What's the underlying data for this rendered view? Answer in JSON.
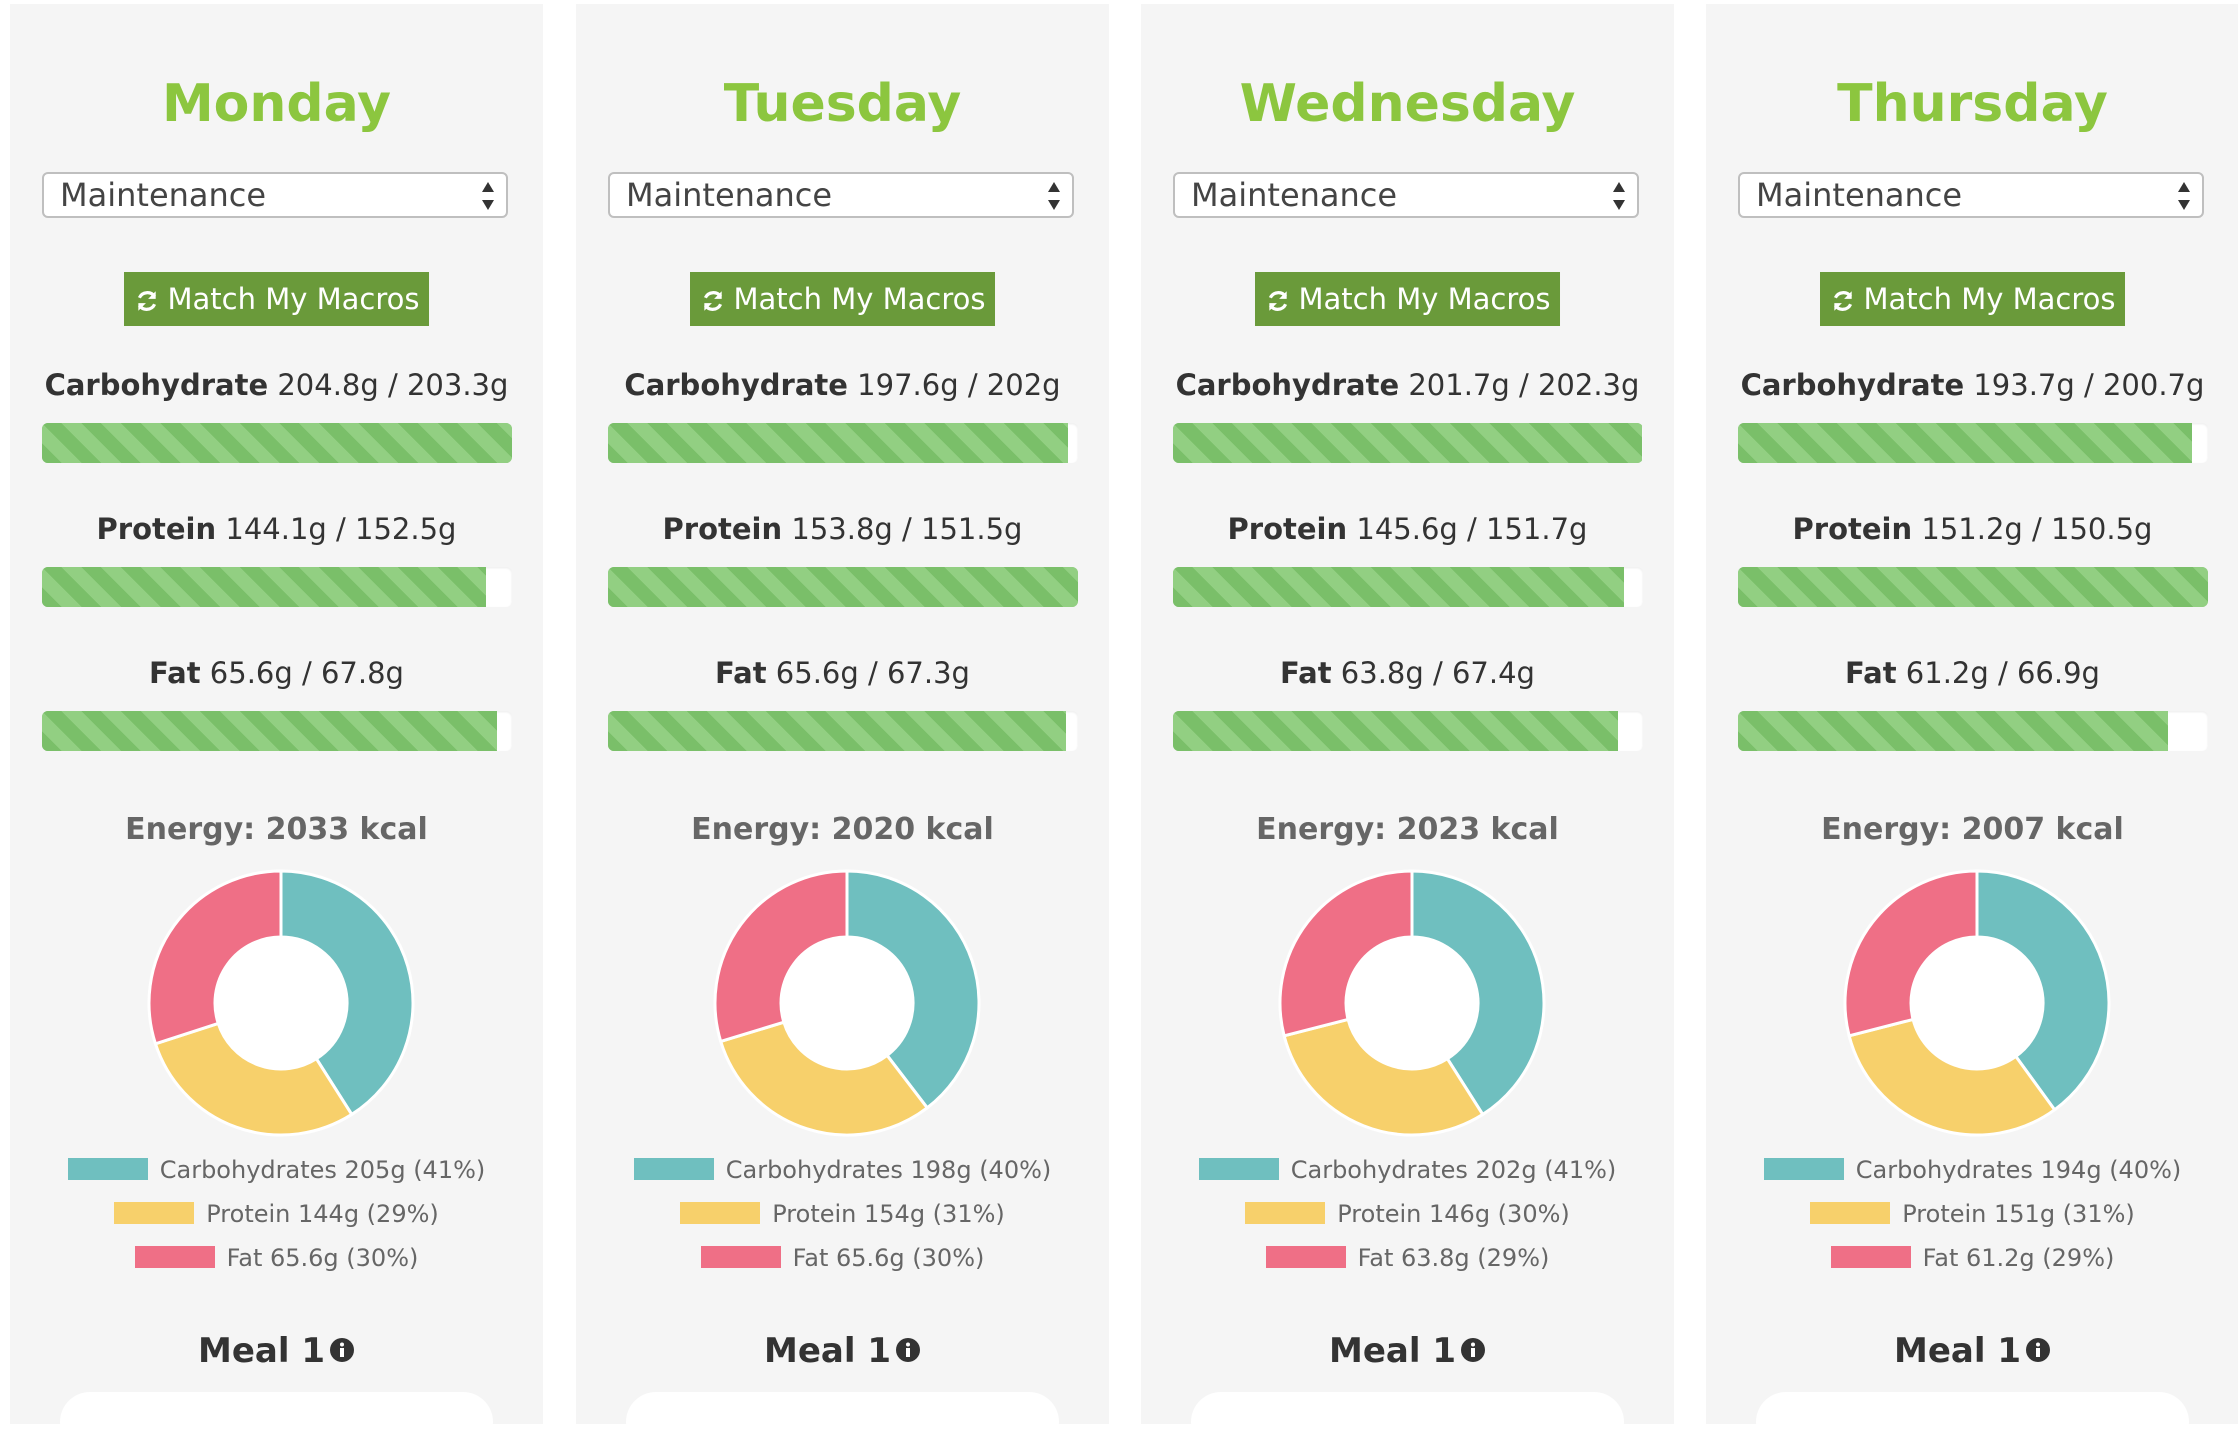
{
  "colors": {
    "accent_green": "#8cc63f",
    "button_green": "#6a9a3a",
    "carbohydrates": "#6fbfbf",
    "protein": "#f7d06b",
    "fat": "#ef6f86"
  },
  "days": [
    {
      "name": "Monday",
      "plan": "Maintenance",
      "button_label": "Match My Macros",
      "carb": {
        "label": "Carbohydrate",
        "value": "204.8g / 203.3g",
        "progress": 1.0
      },
      "protein": {
        "label": "Protein",
        "value": "144.1g / 152.5g",
        "progress": 0.945
      },
      "fat": {
        "label": "Fat",
        "value": "65.6g / 67.8g",
        "progress": 0.968
      },
      "energy": "Energy: 2033 kcal",
      "legend": [
        "Carbohydrates 205g (41%)",
        "Protein 144g (29%)",
        "Fat 65.6g (30%)"
      ],
      "meal": "Meal 1"
    },
    {
      "name": "Tuesday",
      "plan": "Maintenance",
      "button_label": "Match My Macros",
      "carb": {
        "label": "Carbohydrate",
        "value": "197.6g / 202g",
        "progress": 0.978
      },
      "protein": {
        "label": "Protein",
        "value": "153.8g / 151.5g",
        "progress": 1.0
      },
      "fat": {
        "label": "Fat",
        "value": "65.6g / 67.3g",
        "progress": 0.975
      },
      "energy": "Energy: 2020 kcal",
      "legend": [
        "Carbohydrates 198g (40%)",
        "Protein 154g (31%)",
        "Fat 65.6g (30%)"
      ],
      "meal": "Meal 1"
    },
    {
      "name": "Wednesday",
      "plan": "Maintenance",
      "button_label": "Match My Macros",
      "carb": {
        "label": "Carbohydrate",
        "value": "201.7g / 202.3g",
        "progress": 0.997
      },
      "protein": {
        "label": "Protein",
        "value": "145.6g / 151.7g",
        "progress": 0.96
      },
      "fat": {
        "label": "Fat",
        "value": "63.8g / 67.4g",
        "progress": 0.947
      },
      "energy": "Energy: 2023 kcal",
      "legend": [
        "Carbohydrates 202g (41%)",
        "Protein 146g (30%)",
        "Fat 63.8g (29%)"
      ],
      "meal": "Meal 1"
    },
    {
      "name": "Thursday",
      "plan": "Maintenance",
      "button_label": "Match My Macros",
      "carb": {
        "label": "Carbohydrate",
        "value": "193.7g / 200.7g",
        "progress": 0.965
      },
      "protein": {
        "label": "Protein",
        "value": "151.2g / 150.5g",
        "progress": 1.0
      },
      "fat": {
        "label": "Fat",
        "value": "61.2g / 66.9g",
        "progress": 0.915
      },
      "energy": "Energy: 2007 kcal",
      "legend": [
        "Carbohydrates 194g (40%)",
        "Protein 151g (31%)",
        "Fat 61.2g (29%)"
      ],
      "meal": "Meal 1"
    }
  ],
  "chart_data": [
    {
      "type": "pie",
      "categories": [
        "Carbohydrates",
        "Protein",
        "Fat"
      ],
      "values": [
        41,
        29,
        30
      ]
    },
    {
      "type": "pie",
      "categories": [
        "Carbohydrates",
        "Protein",
        "Fat"
      ],
      "values": [
        40,
        31,
        30
      ]
    },
    {
      "type": "pie",
      "categories": [
        "Carbohydrates",
        "Protein",
        "Fat"
      ],
      "values": [
        41,
        30,
        29
      ]
    },
    {
      "type": "pie",
      "categories": [
        "Carbohydrates",
        "Protein",
        "Fat"
      ],
      "values": [
        40,
        31,
        29
      ]
    }
  ]
}
